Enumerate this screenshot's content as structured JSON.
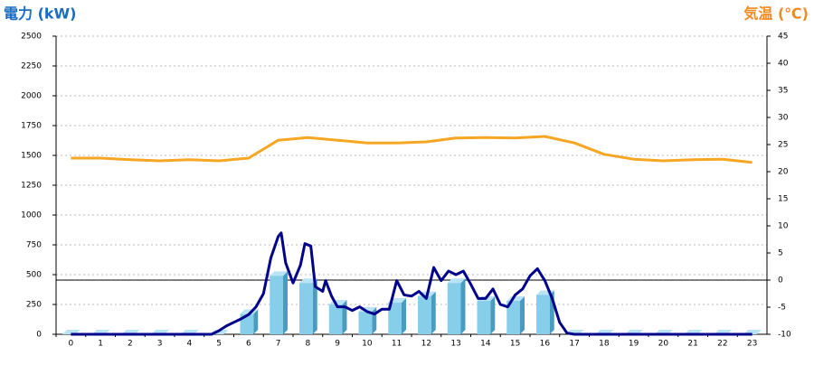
{
  "chart_data": {
    "type": "bar",
    "title": "電力 (kW)",
    "y2_title": "気温 (℃)",
    "categories": [
      "0",
      "1",
      "2",
      "3",
      "4",
      "5",
      "6",
      "7",
      "8",
      "9",
      "10",
      "11",
      "12",
      "13",
      "14",
      "15",
      "16",
      "17",
      "18",
      "19",
      "20",
      "21",
      "22",
      "23"
    ],
    "ylim": [
      0,
      2500
    ],
    "yticks": [
      0,
      250,
      500,
      750,
      1000,
      1250,
      1500,
      1750,
      2000,
      2250,
      2500
    ],
    "y2lim": [
      -10,
      45
    ],
    "y2ticks": [
      -10,
      -5,
      0,
      5,
      10,
      15,
      20,
      25,
      30,
      35,
      40,
      45
    ],
    "y2_baseline": 0,
    "grid": true,
    "series": [
      {
        "type": "bar",
        "color": "#87ceeb",
        "values": [
          0,
          0,
          0,
          0,
          0,
          0,
          170,
          490,
          430,
          250,
          190,
          265,
          320,
          430,
          280,
          280,
          330,
          0,
          0,
          0,
          0,
          0,
          0,
          0
        ]
      },
      {
        "type": "line",
        "color": "#00008b",
        "x": [
          0,
          4.75,
          5,
          5.25,
          5.5,
          5.75,
          6,
          6.25,
          6.5,
          6.75,
          7,
          7.1,
          7.25,
          7.5,
          7.75,
          7.9,
          8.1,
          8.25,
          8.5,
          8.6,
          8.8,
          9,
          9.25,
          9.5,
          9.75,
          10,
          10.25,
          10.5,
          10.75,
          11,
          11.25,
          11.5,
          11.75,
          12,
          12.25,
          12.5,
          12.75,
          13,
          13.25,
          13.5,
          13.75,
          14,
          14.25,
          14.5,
          14.75,
          15,
          15.25,
          15.5,
          15.75,
          16,
          16.25,
          16.5,
          16.75,
          17,
          23
        ],
        "values": [
          0,
          0,
          30,
          70,
          100,
          130,
          165,
          230,
          340,
          640,
          820,
          850,
          600,
          430,
          580,
          760,
          740,
          400,
          360,
          450,
          320,
          230,
          230,
          200,
          230,
          190,
          170,
          210,
          210,
          450,
          330,
          320,
          360,
          300,
          560,
          450,
          530,
          500,
          530,
          420,
          300,
          300,
          380,
          250,
          230,
          330,
          380,
          490,
          550,
          450,
          300,
          100,
          10,
          0,
          0
        ]
      },
      {
        "type": "line",
        "axis": "y2",
        "color": "#f5a623",
        "values": [
          22.5,
          22.5,
          22.2,
          22,
          22.2,
          22,
          22.5,
          25.8,
          26.3,
          25.8,
          25.3,
          25.3,
          25.5,
          26.2,
          26.3,
          26.2,
          26.5,
          25.3,
          23.2,
          22.3,
          22,
          22.2,
          22.3,
          21.7
        ]
      }
    ]
  }
}
